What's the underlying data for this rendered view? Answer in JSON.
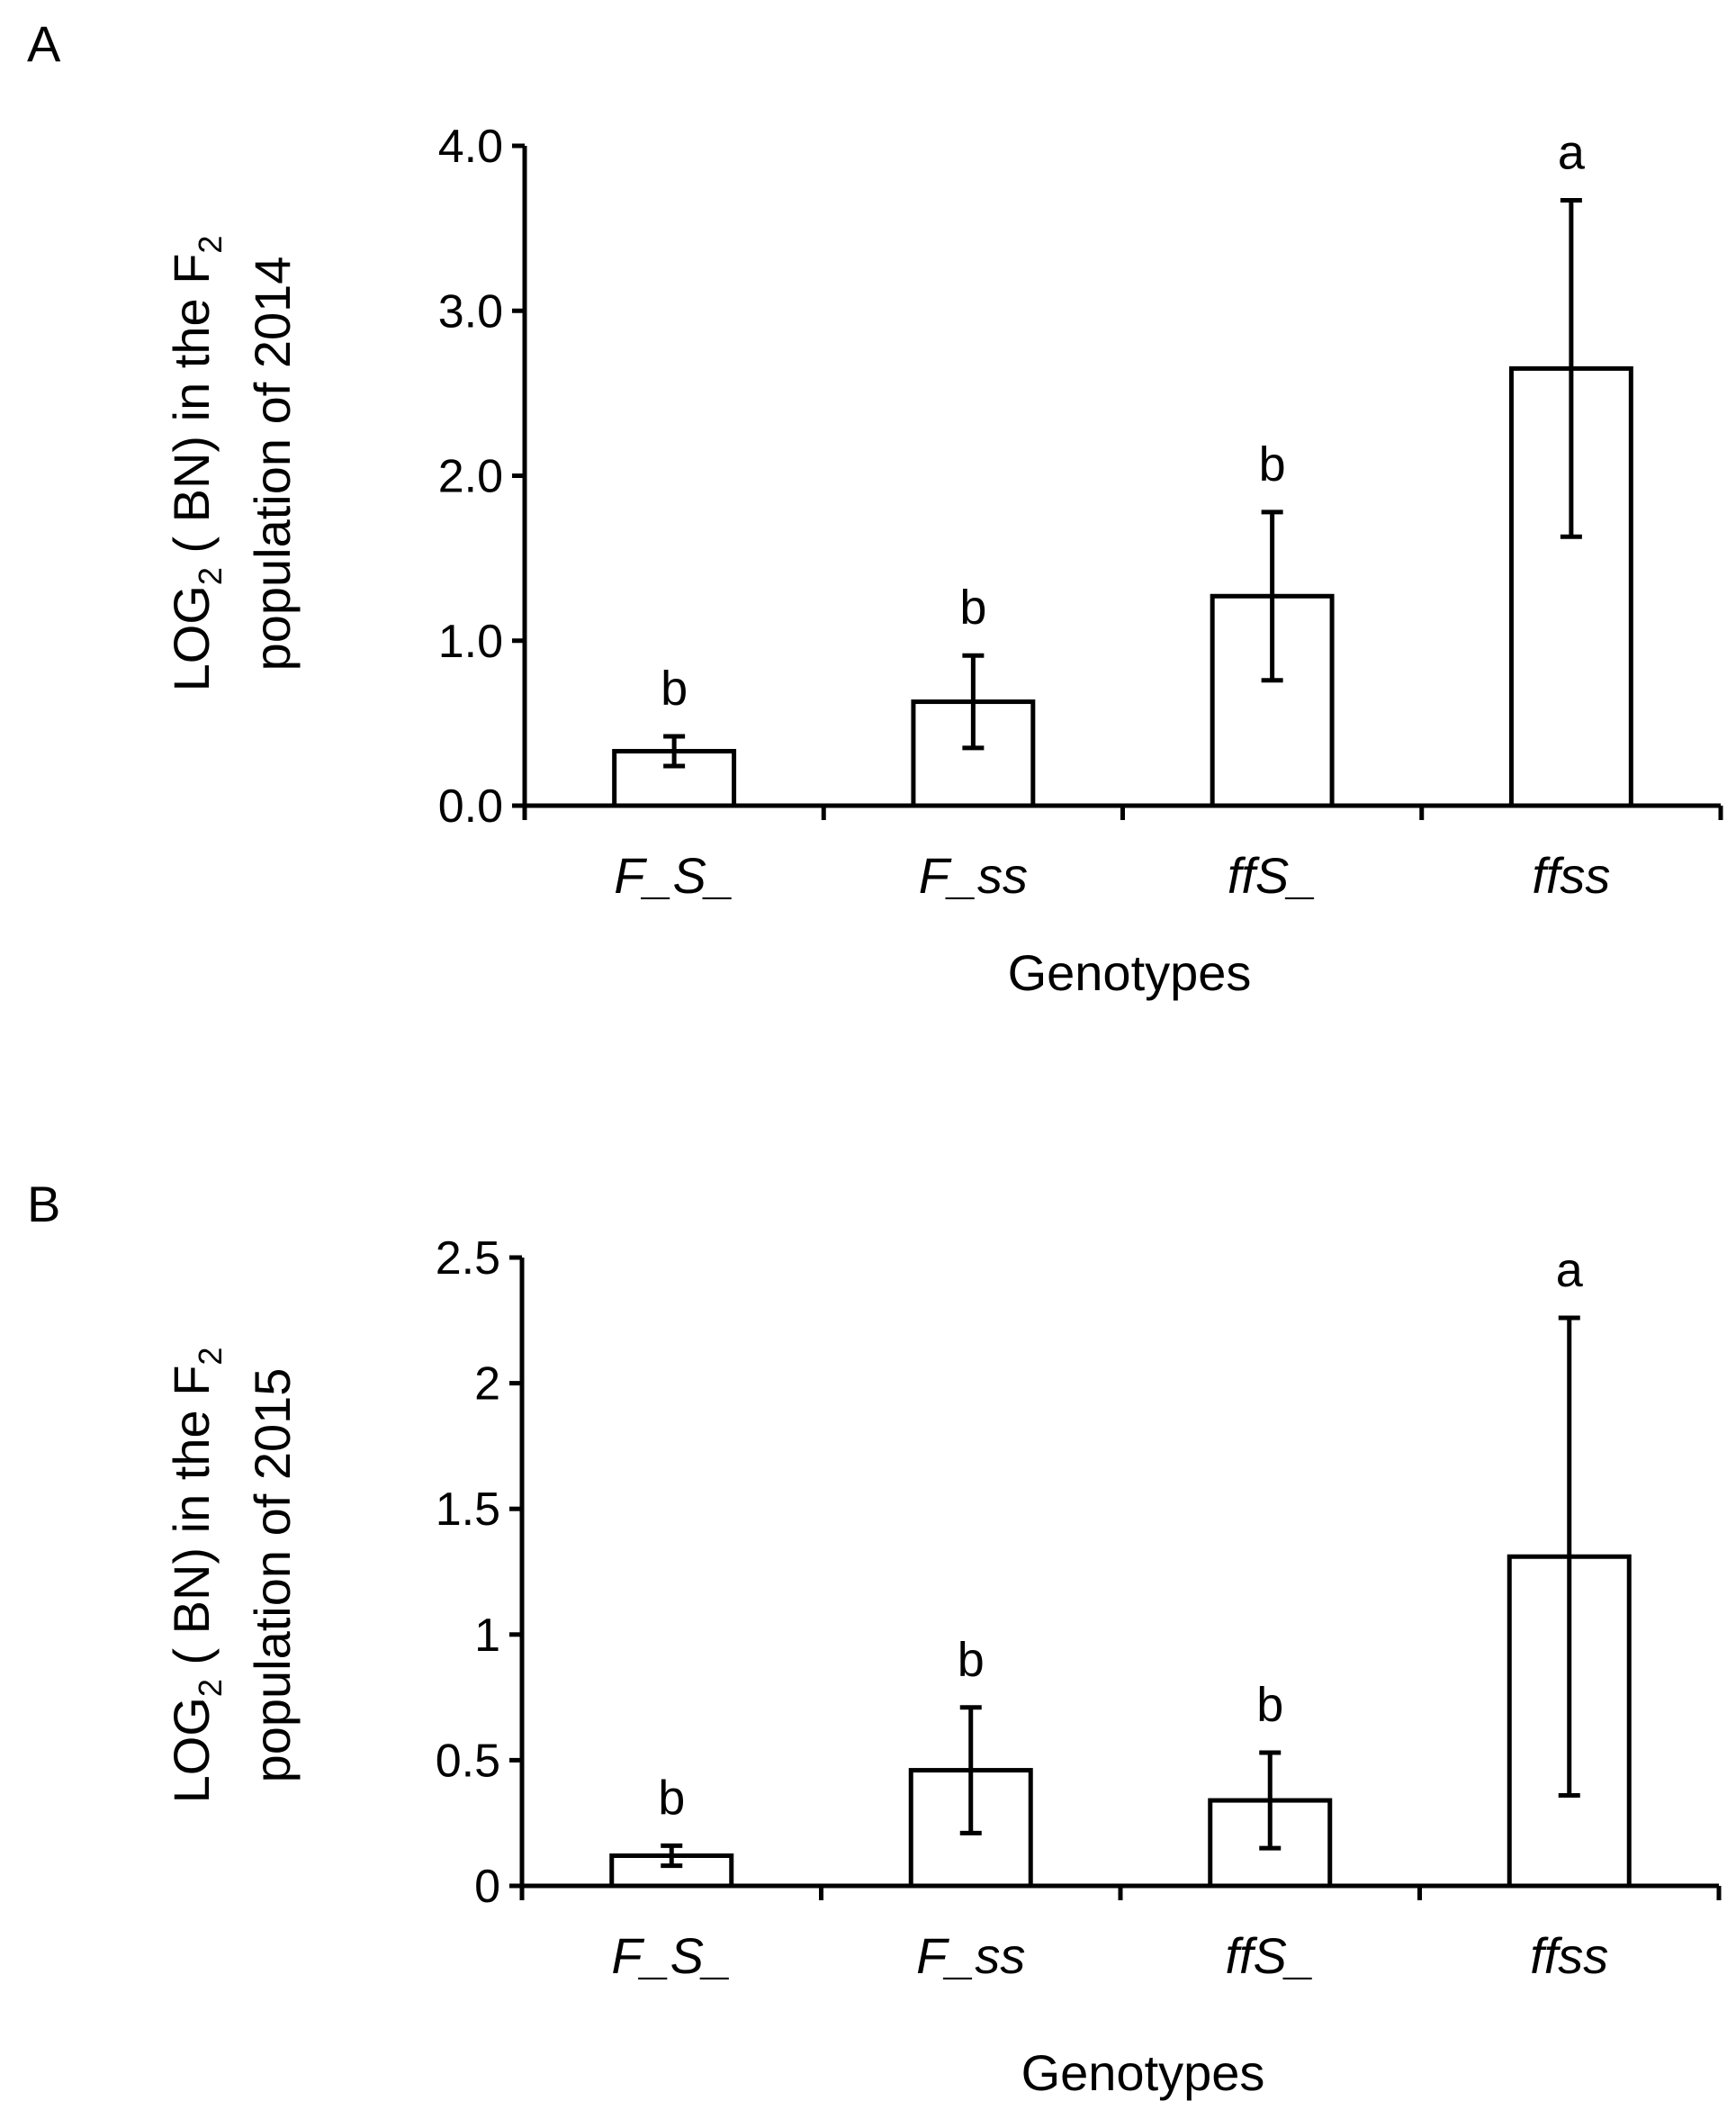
{
  "chart_data": [
    {
      "type": "bar",
      "panel": "A",
      "categories": [
        "F_S_",
        "F_ss",
        "ffS_",
        "ffss"
      ],
      "values": [
        0.33,
        0.63,
        1.27,
        2.65
      ],
      "errors": [
        0.09,
        0.28,
        0.51,
        1.02
      ],
      "significance": [
        "b",
        "b",
        "b",
        "a"
      ],
      "ylabel_line1": "LOG",
      "ylabel_sub1": "2",
      "ylabel_line1_rest": " ( BN) in the F",
      "ylabel_sub2": "2",
      "ylabel_line2": "population of 2014",
      "xlabel": "Genotypes",
      "ylim": [
        0,
        4
      ],
      "yticks": [
        0,
        1,
        2,
        3,
        4
      ],
      "ytick_labels": [
        "0.0",
        "1.0",
        "2.0",
        "3.0",
        "4.0"
      ]
    },
    {
      "type": "bar",
      "panel": "B",
      "categories": [
        "F_S_",
        "F_ss",
        "ffS_",
        "ffss"
      ],
      "values": [
        0.12,
        0.46,
        0.34,
        1.31
      ],
      "errors": [
        0.04,
        0.25,
        0.19,
        0.95
      ],
      "significance": [
        "b",
        "b",
        "b",
        "a"
      ],
      "ylabel_line1": "LOG",
      "ylabel_sub1": "2",
      "ylabel_line1_rest": " ( BN) in the F",
      "ylabel_sub2": "2",
      "ylabel_line2": "population of 2015",
      "xlabel": "Genotypes",
      "ylim": [
        0,
        2.5
      ],
      "yticks": [
        0,
        0.5,
        1,
        1.5,
        2,
        2.5
      ],
      "ytick_labels": [
        "0",
        "0.5",
        "1",
        "1.5",
        "2",
        "2.5"
      ]
    }
  ]
}
